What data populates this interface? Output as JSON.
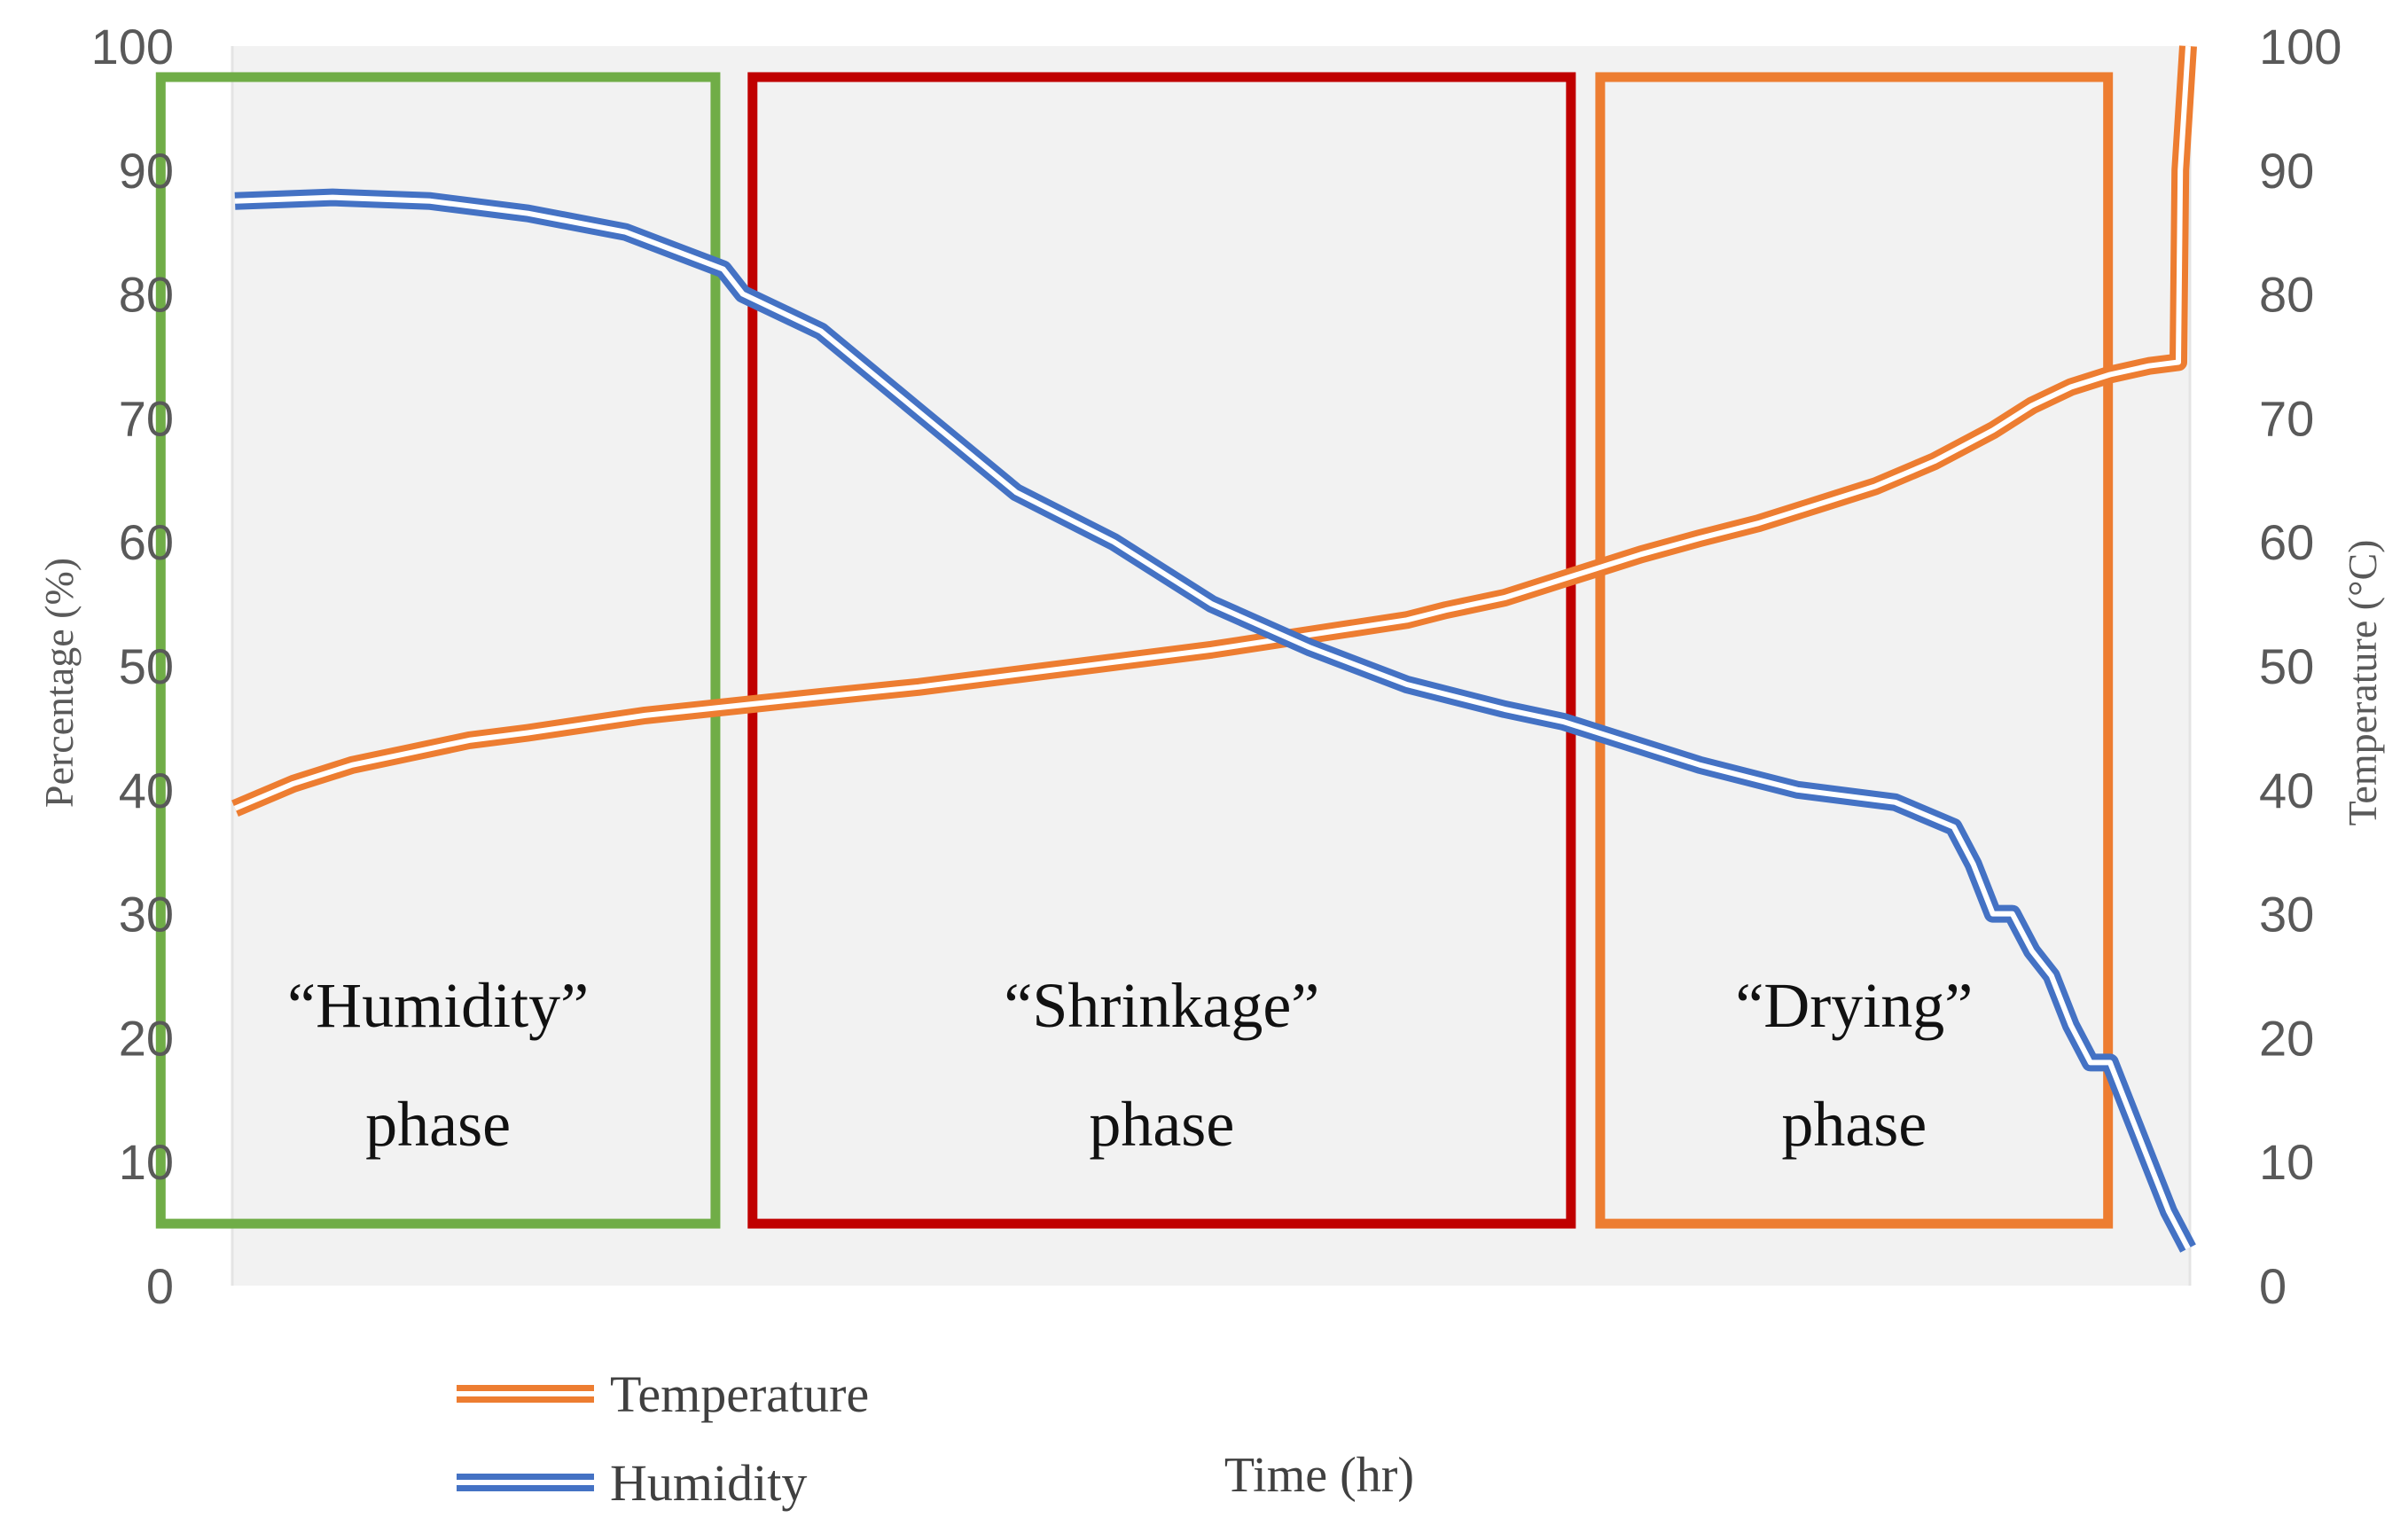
{
  "chart_data": {
    "type": "line",
    "xlabel": "Time (hr)",
    "ylabel_left": "Percentage (%)",
    "ylabel_right": "Temperature (°C)",
    "ylim_left": [
      0,
      100
    ],
    "ylim_right": [
      0,
      100
    ],
    "y_ticks": [
      "0",
      "10",
      "20",
      "30",
      "40",
      "50",
      "60",
      "70",
      "80",
      "90",
      "100"
    ],
    "x_range": [
      0,
      100
    ],
    "grid": false,
    "legend_position": "bottom-left",
    "legend": [
      {
        "name": "Temperature",
        "color": "#ed7d31"
      },
      {
        "name": "Humidity",
        "color": "#4472c4"
      }
    ],
    "series": [
      {
        "name": "Temperature",
        "axis": "right",
        "color": "#ed7d31",
        "x": [
          0,
          3,
          6,
          9,
          12,
          15,
          18,
          21,
          24,
          27,
          30,
          35,
          40,
          45,
          50,
          55,
          60,
          62,
          65,
          68,
          70,
          72,
          75,
          78,
          81,
          84,
          87,
          90,
          92,
          94,
          96,
          98,
          99.5,
          99.6,
          100
        ],
        "values": [
          38.5,
          40.5,
          42,
          43,
          44,
          44.6,
          45.3,
          46,
          46.5,
          47,
          47.5,
          48.3,
          49.3,
          50.3,
          51.3,
          52.5,
          53.7,
          54.5,
          55.5,
          57,
          58,
          59,
          60.3,
          61.5,
          63,
          64.5,
          66.5,
          69,
          71,
          72.5,
          73.5,
          74.2,
          74.5,
          90,
          100
        ]
      },
      {
        "name": "Humidity",
        "axis": "left",
        "color": "#4472c4",
        "x": [
          0,
          5,
          10,
          15,
          20,
          25,
          26,
          30,
          35,
          40,
          45,
          50,
          55,
          60,
          65,
          68,
          70,
          75,
          80,
          85,
          88,
          89,
          90,
          91,
          92,
          93,
          94,
          95,
          96,
          97,
          98,
          99,
          100
        ],
        "values": [
          87.5,
          87.8,
          87.5,
          86.5,
          85,
          82,
          80,
          77,
          70.5,
          64,
          60,
          55,
          51.5,
          48.5,
          46.5,
          45.5,
          44.5,
          42,
          40,
          39,
          37,
          34,
          30,
          30,
          27,
          25,
          21,
          18,
          18,
          14,
          10,
          6,
          3
        ]
      }
    ],
    "annotations": [
      {
        "name": "humidity-phase",
        "line1": "“Humidity”",
        "line2": "phase",
        "color": "#70ad47",
        "x_start": -3.8,
        "x_end": 24.6,
        "y_low": 5,
        "y_high": 97.5
      },
      {
        "name": "shrinkage-phase",
        "line1": "“Shrinkage”",
        "line2": "phase",
        "color": "#c00000",
        "x_start": 26.5,
        "x_end": 68.4,
        "y_low": 5,
        "y_high": 97.5
      },
      {
        "name": "drying-phase",
        "line1": "“Drying”",
        "line2": "phase",
        "color": "#ed7d31",
        "x_start": 69.9,
        "x_end": 95.9,
        "y_low": 5,
        "y_high": 97.5
      }
    ]
  }
}
